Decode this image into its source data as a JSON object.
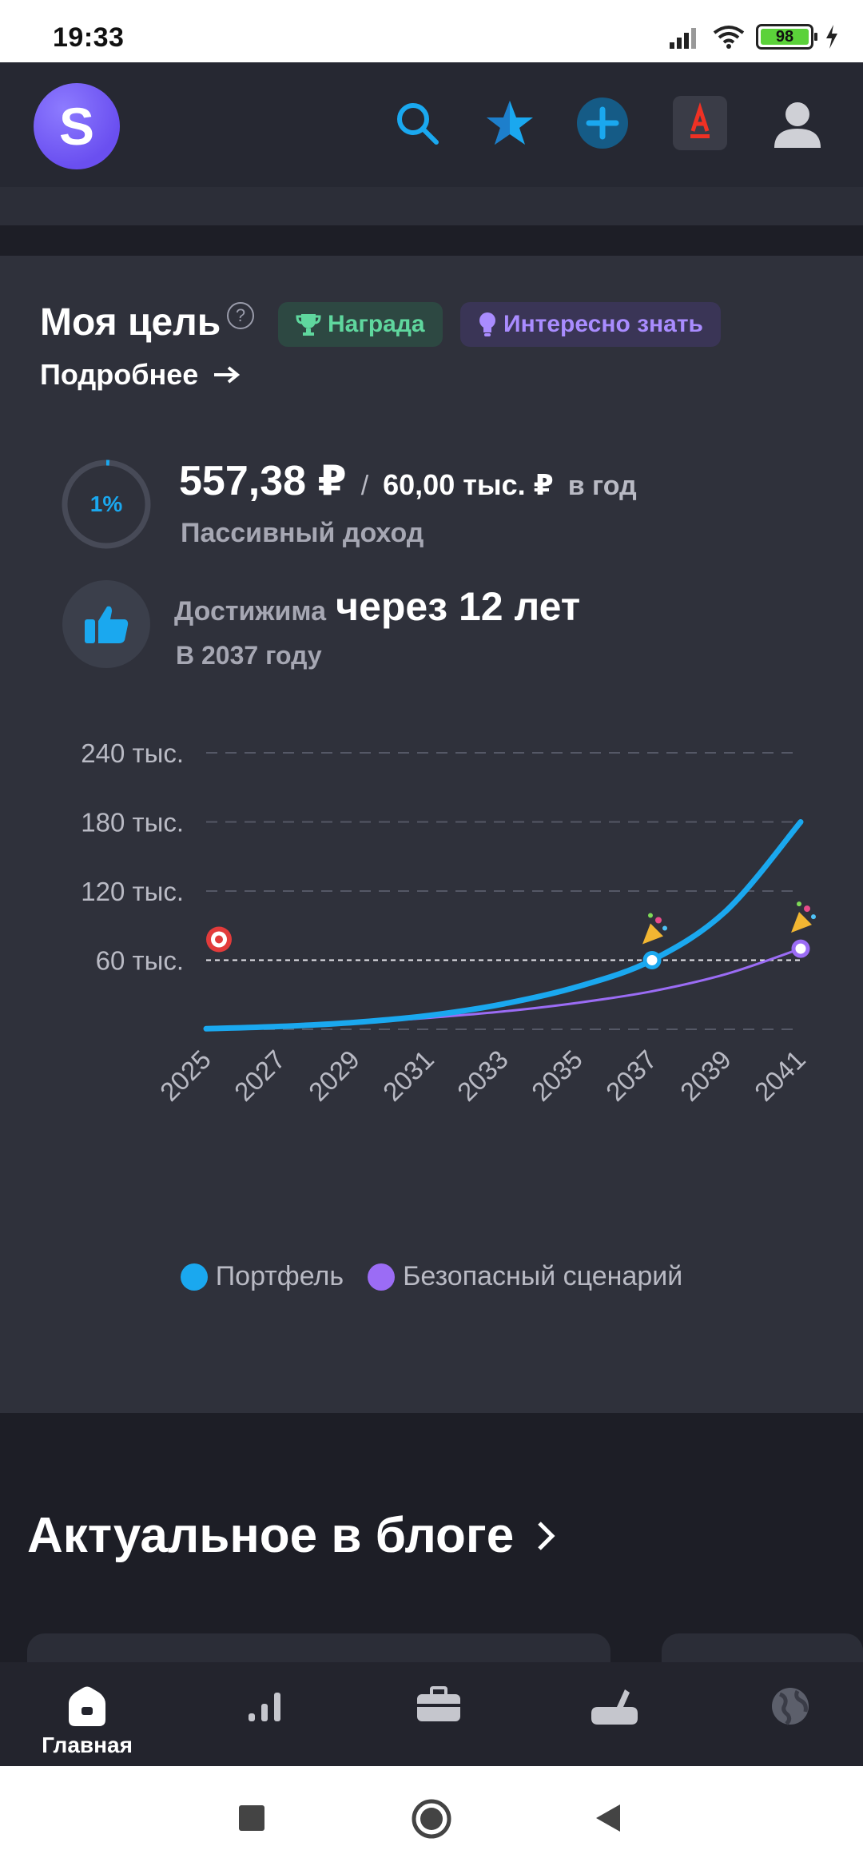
{
  "status": {
    "time": "19:33",
    "battery": "98"
  },
  "header": {
    "logo_letter": "S",
    "icons": [
      "search-icon",
      "star-icon",
      "plus-icon",
      "alfa-bank-icon",
      "profile-icon"
    ]
  },
  "goal": {
    "title": "Моя цель",
    "help": "?",
    "badge_award": "Награда",
    "badge_know": "Интересно знать",
    "more_link": "Подробнее",
    "progress_label": "1%",
    "progress_value": 0.01,
    "income_current": "557,38 ₽",
    "income_slash": "/",
    "income_target": "60,00 тыс. ₽",
    "income_period": "в год",
    "income_caption": "Пассивный доход",
    "reach_label": "Достижима",
    "reach_value": "через 12 лет",
    "reach_year": "В 2037 году"
  },
  "chart_data": {
    "type": "line",
    "y_ticks": [
      "240 тыс.",
      "180 тыс.",
      "120 тыс.",
      "60 тыс."
    ],
    "ylim": [
      0,
      240000
    ],
    "x_ticks": [
      "2025",
      "2027",
      "2029",
      "2031",
      "2033",
      "2035",
      "2037",
      "2039",
      "2041"
    ],
    "xlim": [
      2025,
      2041
    ],
    "goal_line": 60000,
    "grid": true,
    "legend_position": "bottom",
    "series": [
      {
        "name": "Портфель",
        "color": "#1aa8ef",
        "x": [
          2025,
          2027,
          2029,
          2031,
          2033,
          2035,
          2037,
          2039,
          2041
        ],
        "y": [
          500,
          2500,
          6000,
          12000,
          22000,
          37000,
          60000,
          103000,
          180000
        ]
      },
      {
        "name": "Безопасный сценарий",
        "color": "#9b6cf5",
        "x": [
          2025,
          2027,
          2029,
          2031,
          2033,
          2035,
          2037,
          2039,
          2041
        ],
        "y": [
          500,
          2500,
          5500,
          10000,
          15500,
          23000,
          33000,
          48000,
          70000
        ]
      }
    ]
  },
  "blog": {
    "title": "Актуальное в блоге"
  },
  "bottom_nav": {
    "items": [
      {
        "label": "Главная",
        "icon": "home-icon"
      },
      {
        "label": "",
        "icon": "analytics-icon"
      },
      {
        "label": "",
        "icon": "portfolio-icon"
      },
      {
        "label": "",
        "icon": "tools-icon"
      },
      {
        "label": "",
        "icon": "globe-icon"
      }
    ]
  },
  "colors": {
    "bg": "#1d1e26",
    "card": "#2f313b",
    "accent": "#1aa8ef",
    "purple": "#9b6cf5",
    "green": "#5fd79e"
  }
}
